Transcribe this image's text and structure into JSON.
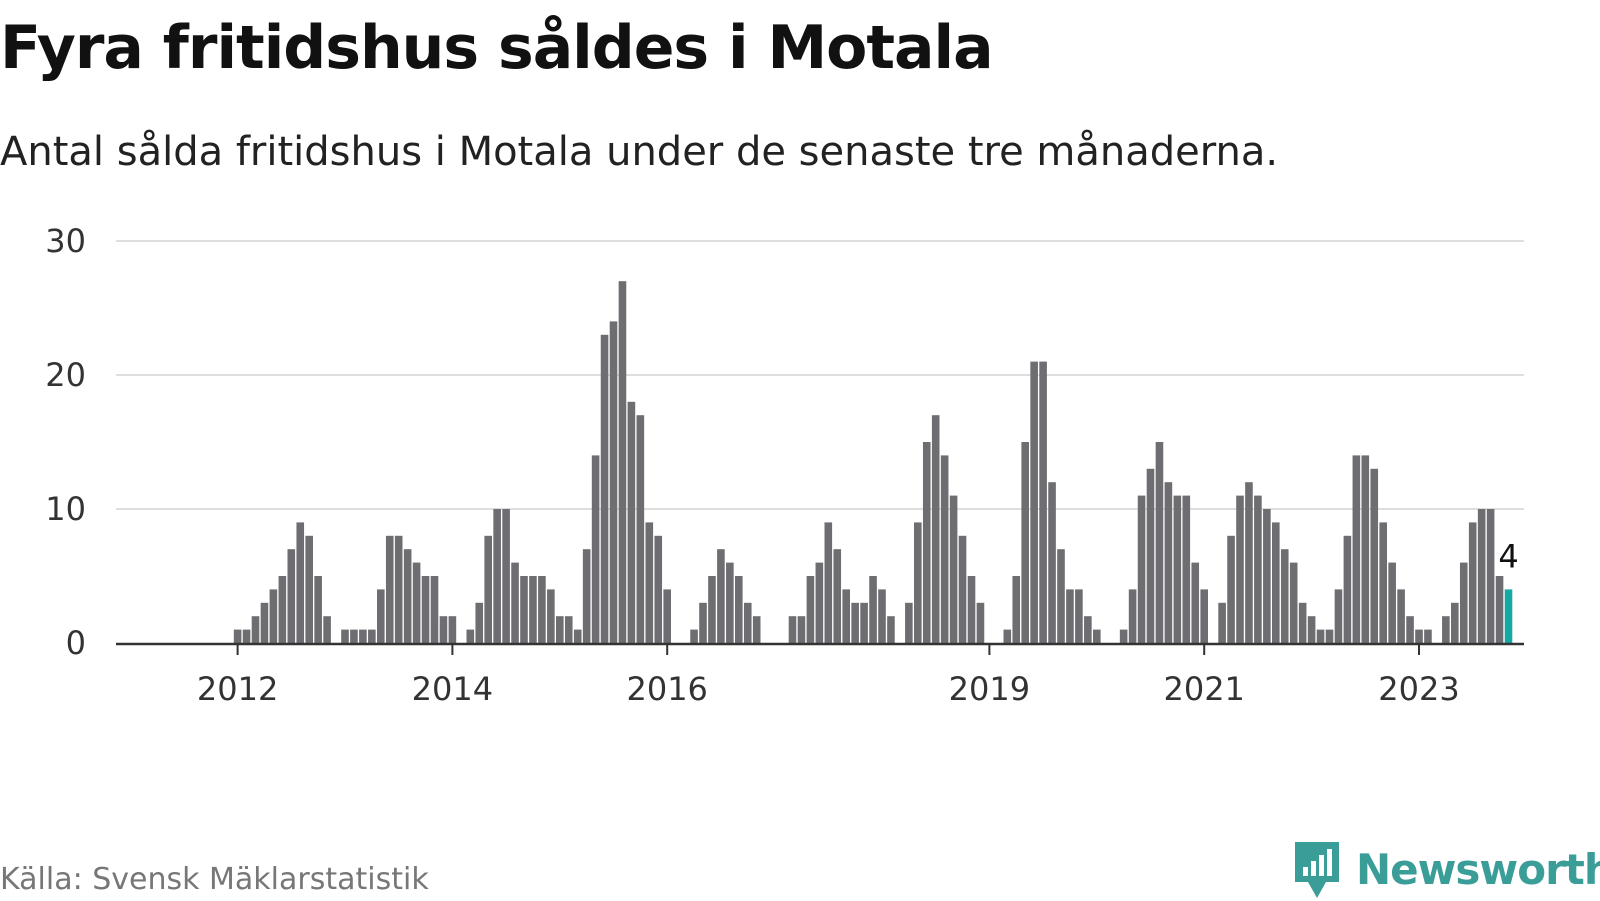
{
  "title": "Fyra fritidshus såldes i Motala",
  "subtitle": "Antal sålda fritidshus i Motala under de senaste tre månaderna.",
  "source": "Källa: Svensk Mäklarstatistik",
  "brand": {
    "name": "Newsworthy",
    "icon": "newsworthy-logo-icon",
    "color": "#3a9d98"
  },
  "colors": {
    "bar": "#6e6d71",
    "highlight": "#18a8a4",
    "grid": "#dedede",
    "axis": "#333333"
  },
  "chart_data": {
    "type": "bar",
    "title": "Fyra fritidshus såldes i Motala",
    "subtitle": "Antal sålda fritidshus i Motala under de senaste tre månaderna.",
    "xlabel": "",
    "ylabel": "",
    "ylim": [
      0,
      30
    ],
    "yticks": [
      0,
      10,
      20,
      30
    ],
    "grid": true,
    "xtick_labels": [
      "2012",
      "2014",
      "2016",
      "2019",
      "2021",
      "2023"
    ],
    "start_month": "2011-05",
    "highlight_label": "4",
    "series": [
      {
        "values": [
          0,
          0,
          0,
          0,
          0,
          0,
          0,
          0,
          1,
          1,
          2,
          3,
          4,
          5,
          7,
          9,
          8,
          5,
          2,
          0,
          1,
          1,
          1,
          1,
          4,
          8,
          8,
          7,
          6,
          5,
          5,
          2,
          2,
          0,
          1,
          3,
          8,
          10,
          10,
          6,
          5,
          5,
          5,
          4,
          2,
          2,
          1,
          7,
          14,
          23,
          24,
          27,
          18,
          17,
          9,
          8,
          4,
          0,
          0,
          1,
          3,
          5,
          7,
          6,
          5,
          3,
          2,
          0,
          0,
          0,
          2,
          2,
          5,
          6,
          9,
          7,
          4,
          3,
          3,
          5,
          4,
          2,
          0,
          3,
          9,
          15,
          17,
          14,
          11,
          8,
          5,
          3,
          0,
          0,
          1,
          5,
          15,
          21,
          21,
          12,
          7,
          4,
          4,
          2,
          1,
          0,
          0,
          1,
          4,
          11,
          13,
          15,
          12,
          11,
          11,
          6,
          4,
          0,
          3,
          8,
          11,
          12,
          11,
          10,
          9,
          7,
          6,
          3,
          2,
          1,
          1,
          4,
          8,
          14,
          14,
          13,
          9,
          6,
          4,
          2,
          1,
          1,
          0,
          2,
          3,
          6,
          9,
          10,
          10,
          5,
          4
        ]
      }
    ]
  }
}
